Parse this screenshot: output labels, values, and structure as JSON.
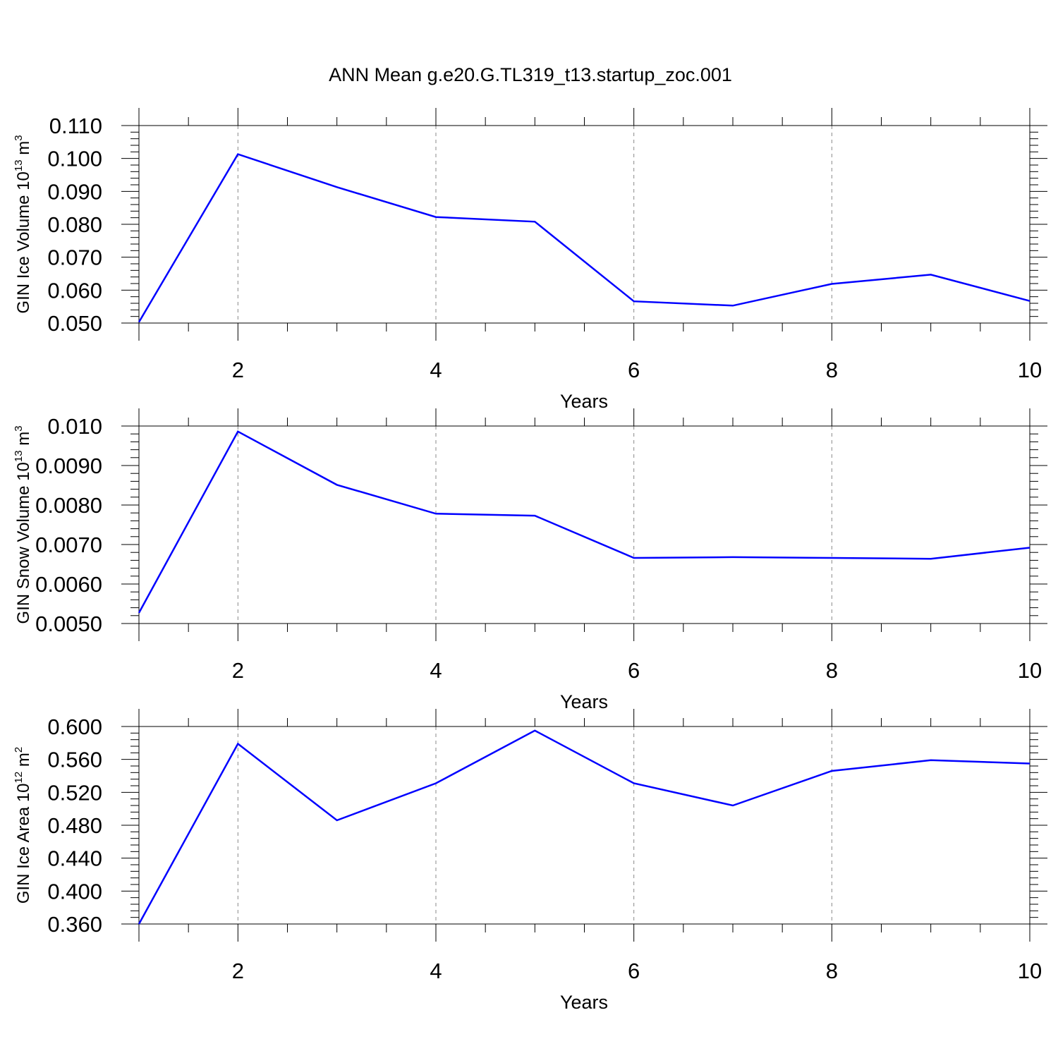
{
  "title": "ANN Mean g.e20.G.TL319_t13.startup_zoc.001",
  "colors": {
    "line": "#0000ff",
    "axis": "#000000",
    "grid": "#888888"
  },
  "chart_data": [
    {
      "type": "line",
      "ylabel": {
        "base": "GIN Ice Volume 10",
        "exp": "13",
        "unit": " m",
        "unit_exp": "3"
      },
      "xlabel": "Years",
      "xlim": [
        1,
        10
      ],
      "ylim": [
        0.05,
        0.11
      ],
      "x_ticks": [
        2,
        4,
        6,
        8,
        10
      ],
      "x_tick_labels": [
        "2",
        "4",
        "6",
        "8",
        "10"
      ],
      "y_ticks": [
        0.05,
        0.06,
        0.07,
        0.08,
        0.09,
        0.1,
        0.11
      ],
      "y_tick_labels": [
        "0.050",
        "0.060",
        "0.070",
        "0.080",
        "0.090",
        "0.100",
        "0.110"
      ],
      "grid": "dashed vertical at major x ticks",
      "series": [
        {
          "x": [
            1,
            2,
            3,
            4,
            5,
            6,
            7,
            8,
            9,
            10
          ],
          "values": [
            0.0503,
            0.1013,
            0.0913,
            0.0822,
            0.0808,
            0.0566,
            0.0553,
            0.0619,
            0.0647,
            0.0567
          ]
        }
      ]
    },
    {
      "type": "line",
      "ylabel": {
        "base": "GIN Snow Volume 10",
        "exp": "13",
        "unit": " m",
        "unit_exp": "3"
      },
      "xlabel": "Years",
      "xlim": [
        1,
        10
      ],
      "ylim": [
        0.005,
        0.01
      ],
      "x_ticks": [
        2,
        4,
        6,
        8,
        10
      ],
      "x_tick_labels": [
        "2",
        "4",
        "6",
        "8",
        "10"
      ],
      "y_ticks": [
        0.005,
        0.006,
        0.007,
        0.008,
        0.009,
        0.01
      ],
      "y_tick_labels": [
        "0.0050",
        "0.0060",
        "0.0070",
        "0.0080",
        "0.0090",
        "0.010"
      ],
      "grid": "dashed vertical at major x ticks",
      "series": [
        {
          "x": [
            1,
            2,
            3,
            4,
            5,
            6,
            7,
            8,
            9,
            10
          ],
          "values": [
            0.00527,
            0.00986,
            0.00851,
            0.00778,
            0.00773,
            0.00666,
            0.00668,
            0.00666,
            0.00664,
            0.00692
          ]
        }
      ]
    },
    {
      "type": "line",
      "ylabel": {
        "base": "GIN Ice Area 10",
        "exp": "12",
        "unit": " m",
        "unit_exp": "2"
      },
      "xlabel": "Years",
      "xlim": [
        1,
        10
      ],
      "ylim": [
        0.36,
        0.6
      ],
      "x_ticks": [
        2,
        4,
        6,
        8,
        10
      ],
      "x_tick_labels": [
        "2",
        "4",
        "6",
        "8",
        "10"
      ],
      "y_ticks": [
        0.36,
        0.4,
        0.44,
        0.48,
        0.52,
        0.56,
        0.6
      ],
      "y_tick_labels": [
        "0.360",
        "0.400",
        "0.440",
        "0.480",
        "0.520",
        "0.560",
        "0.600"
      ],
      "grid": "dashed vertical at major x ticks",
      "series": [
        {
          "x": [
            1,
            2,
            3,
            4,
            5,
            6,
            7,
            8,
            9,
            10
          ],
          "values": [
            0.36,
            0.579,
            0.486,
            0.531,
            0.595,
            0.531,
            0.504,
            0.546,
            0.559,
            0.555
          ]
        }
      ]
    }
  ]
}
